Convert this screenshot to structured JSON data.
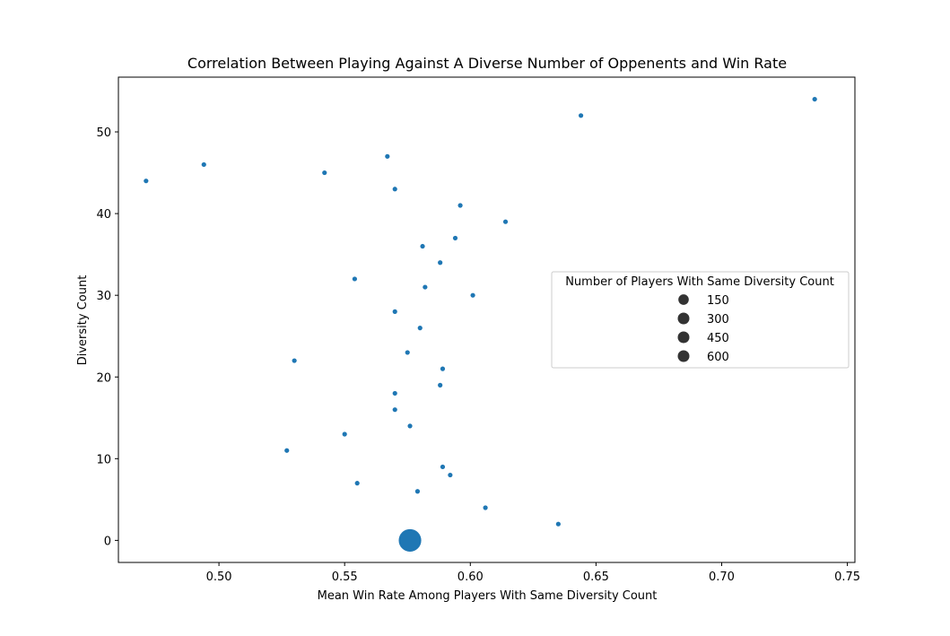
{
  "chart_data": {
    "type": "scatter",
    "title": "Correlation Between Playing Against A Diverse Number of Oppenents and Win Rate",
    "xlabel": "Mean Win Rate Among Players With Same Diversity Count",
    "ylabel": "Diversity Count",
    "xlim": [
      0.46,
      0.753
    ],
    "ylim": [
      -2.7,
      56.7
    ],
    "xticks": [
      0.5,
      0.55,
      0.6,
      0.65,
      0.7,
      0.75
    ],
    "xtick_labels": [
      "0.50",
      "0.55",
      "0.60",
      "0.65",
      "0.70",
      "0.75"
    ],
    "yticks": [
      0,
      10,
      20,
      30,
      40,
      50
    ],
    "ytick_labels": [
      "0",
      "10",
      "20",
      "30",
      "40",
      "50"
    ],
    "grid": false,
    "color": "#1f77b4",
    "legend": {
      "title": "Number of Players With Same Diversity Count",
      "placement": "center-right",
      "sizes": [
        150,
        300,
        450,
        600
      ],
      "labels": [
        "150",
        "300",
        "450",
        "600"
      ]
    },
    "points": [
      {
        "x": 0.576,
        "y": 0,
        "size": 700
      },
      {
        "x": 0.635,
        "y": 2,
        "size": 30
      },
      {
        "x": 0.606,
        "y": 4,
        "size": 30
      },
      {
        "x": 0.579,
        "y": 6,
        "size": 30
      },
      {
        "x": 0.555,
        "y": 7,
        "size": 30
      },
      {
        "x": 0.592,
        "y": 8,
        "size": 30
      },
      {
        "x": 0.589,
        "y": 9,
        "size": 30
      },
      {
        "x": 0.527,
        "y": 11,
        "size": 30
      },
      {
        "x": 0.55,
        "y": 13,
        "size": 30
      },
      {
        "x": 0.576,
        "y": 14,
        "size": 30
      },
      {
        "x": 0.57,
        "y": 16,
        "size": 30
      },
      {
        "x": 0.57,
        "y": 18,
        "size": 30
      },
      {
        "x": 0.588,
        "y": 19,
        "size": 30
      },
      {
        "x": 0.589,
        "y": 21,
        "size": 30
      },
      {
        "x": 0.53,
        "y": 22,
        "size": 30
      },
      {
        "x": 0.575,
        "y": 23,
        "size": 30
      },
      {
        "x": 0.58,
        "y": 26,
        "size": 30
      },
      {
        "x": 0.57,
        "y": 28,
        "size": 30
      },
      {
        "x": 0.601,
        "y": 30,
        "size": 30
      },
      {
        "x": 0.582,
        "y": 31,
        "size": 30
      },
      {
        "x": 0.554,
        "y": 32,
        "size": 30
      },
      {
        "x": 0.588,
        "y": 34,
        "size": 30
      },
      {
        "x": 0.581,
        "y": 36,
        "size": 30
      },
      {
        "x": 0.594,
        "y": 37,
        "size": 30
      },
      {
        "x": 0.614,
        "y": 39,
        "size": 30
      },
      {
        "x": 0.596,
        "y": 41,
        "size": 30
      },
      {
        "x": 0.57,
        "y": 43,
        "size": 30
      },
      {
        "x": 0.471,
        "y": 44,
        "size": 30
      },
      {
        "x": 0.542,
        "y": 45,
        "size": 30
      },
      {
        "x": 0.494,
        "y": 46,
        "size": 30
      },
      {
        "x": 0.567,
        "y": 47,
        "size": 30
      },
      {
        "x": 0.644,
        "y": 52,
        "size": 30
      },
      {
        "x": 0.737,
        "y": 54,
        "size": 30
      }
    ]
  }
}
